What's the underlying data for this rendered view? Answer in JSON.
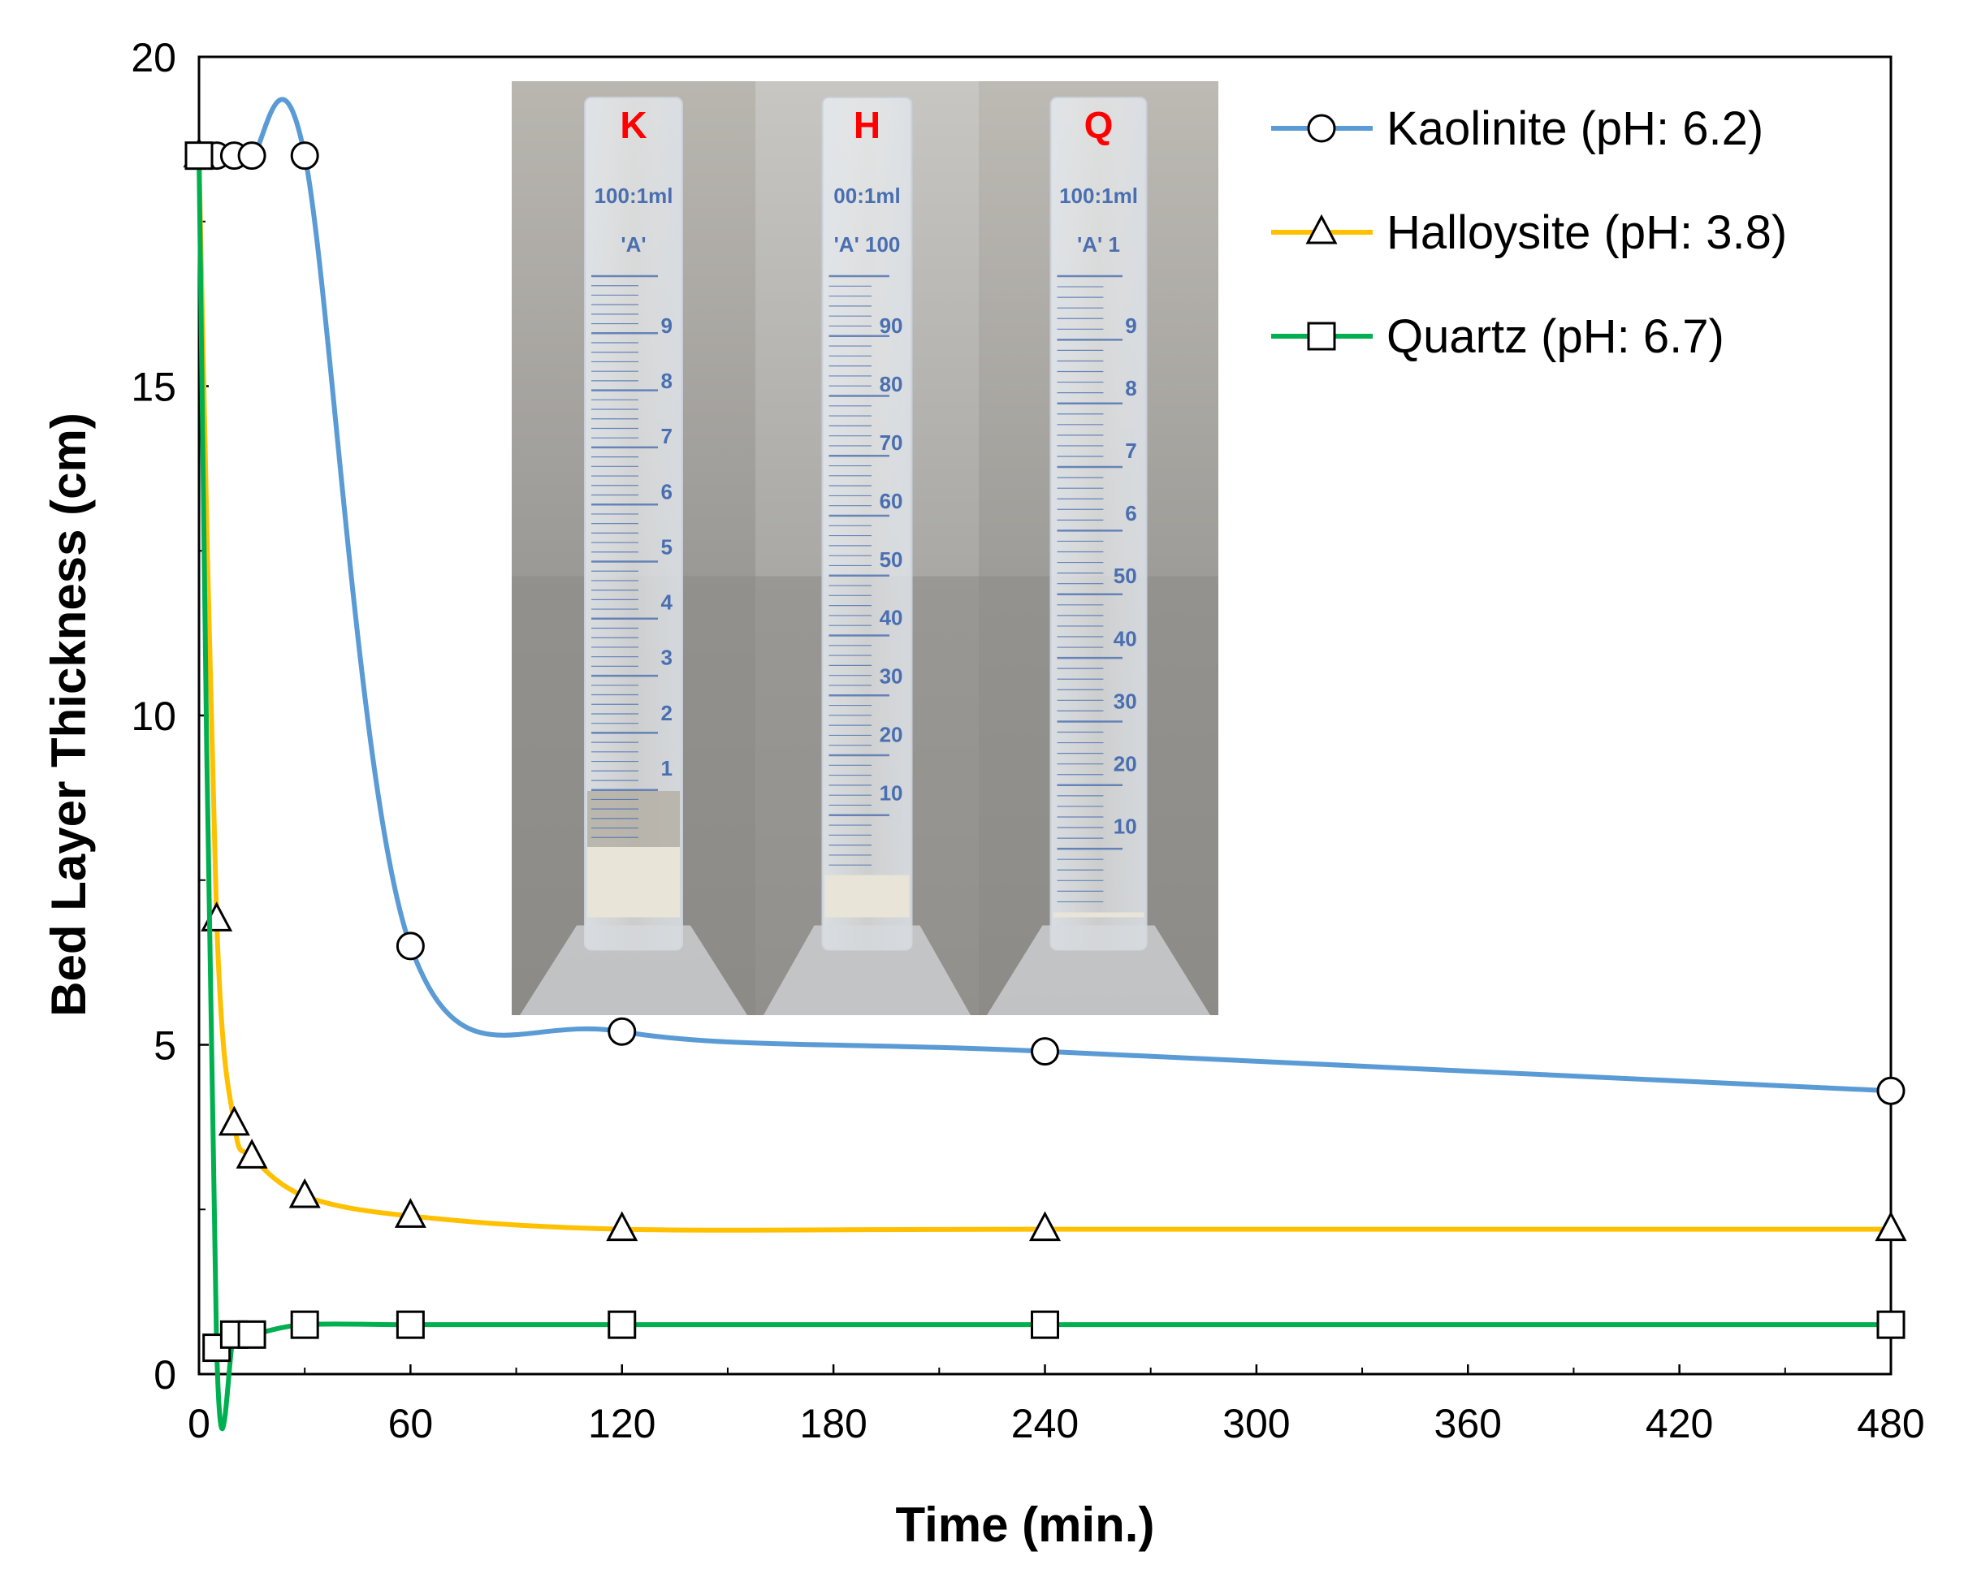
{
  "chart_data": {
    "type": "line",
    "xlabel": "Time (min.)",
    "ylabel": "Bed Layer Thickness (cm)",
    "xlim": [
      0,
      480
    ],
    "ylim": [
      0,
      20
    ],
    "xticks": [
      0,
      60,
      120,
      180,
      240,
      300,
      360,
      420,
      480
    ],
    "yticks": [
      0,
      5,
      10,
      15,
      20
    ],
    "grid": false,
    "legend_position": "top-right",
    "series": [
      {
        "name": "Kaolinite (pH: 6.2)",
        "color": "#5b9bd5",
        "marker": "circle",
        "x": [
          0,
          5,
          10,
          15,
          30,
          60,
          120,
          240,
          480
        ],
        "y": [
          18.5,
          18.5,
          18.5,
          18.5,
          18.5,
          6.5,
          5.2,
          4.9,
          4.3
        ]
      },
      {
        "name": "Halloysite (pH: 3.8)",
        "color": "#ffc000",
        "marker": "triangle",
        "x": [
          0,
          5,
          10,
          15,
          30,
          60,
          120,
          240,
          480
        ],
        "y": [
          18.5,
          6.9,
          3.8,
          3.3,
          2.7,
          2.4,
          2.2,
          2.2,
          2.2
        ]
      },
      {
        "name": "Quartz (pH: 6.7)",
        "color": "#00b050",
        "marker": "square",
        "x": [
          0,
          5,
          10,
          15,
          30,
          60,
          120,
          240,
          480
        ],
        "y": [
          18.5,
          0.4,
          0.6,
          0.6,
          0.75,
          0.75,
          0.75,
          0.75,
          0.75
        ]
      }
    ]
  },
  "inset_photo": {
    "panels": [
      {
        "label": "K",
        "top_text": "100:1ml",
        "mark_text": "'A'",
        "grads": [
          "9",
          "8",
          "7",
          "6",
          "5",
          "4",
          "3",
          "2",
          "1"
        ]
      },
      {
        "label": "H",
        "top_text": "00:1ml",
        "mark_text": "'A' 100",
        "grads": [
          "90",
          "80",
          "70",
          "60",
          "50",
          "40",
          "30",
          "20",
          "10"
        ]
      },
      {
        "label": "Q",
        "top_text": "100:1ml",
        "mark_text": "'A' 1",
        "grads": [
          "9",
          "8",
          "7",
          "6",
          "50",
          "40",
          "30",
          "20",
          "10"
        ]
      }
    ]
  }
}
